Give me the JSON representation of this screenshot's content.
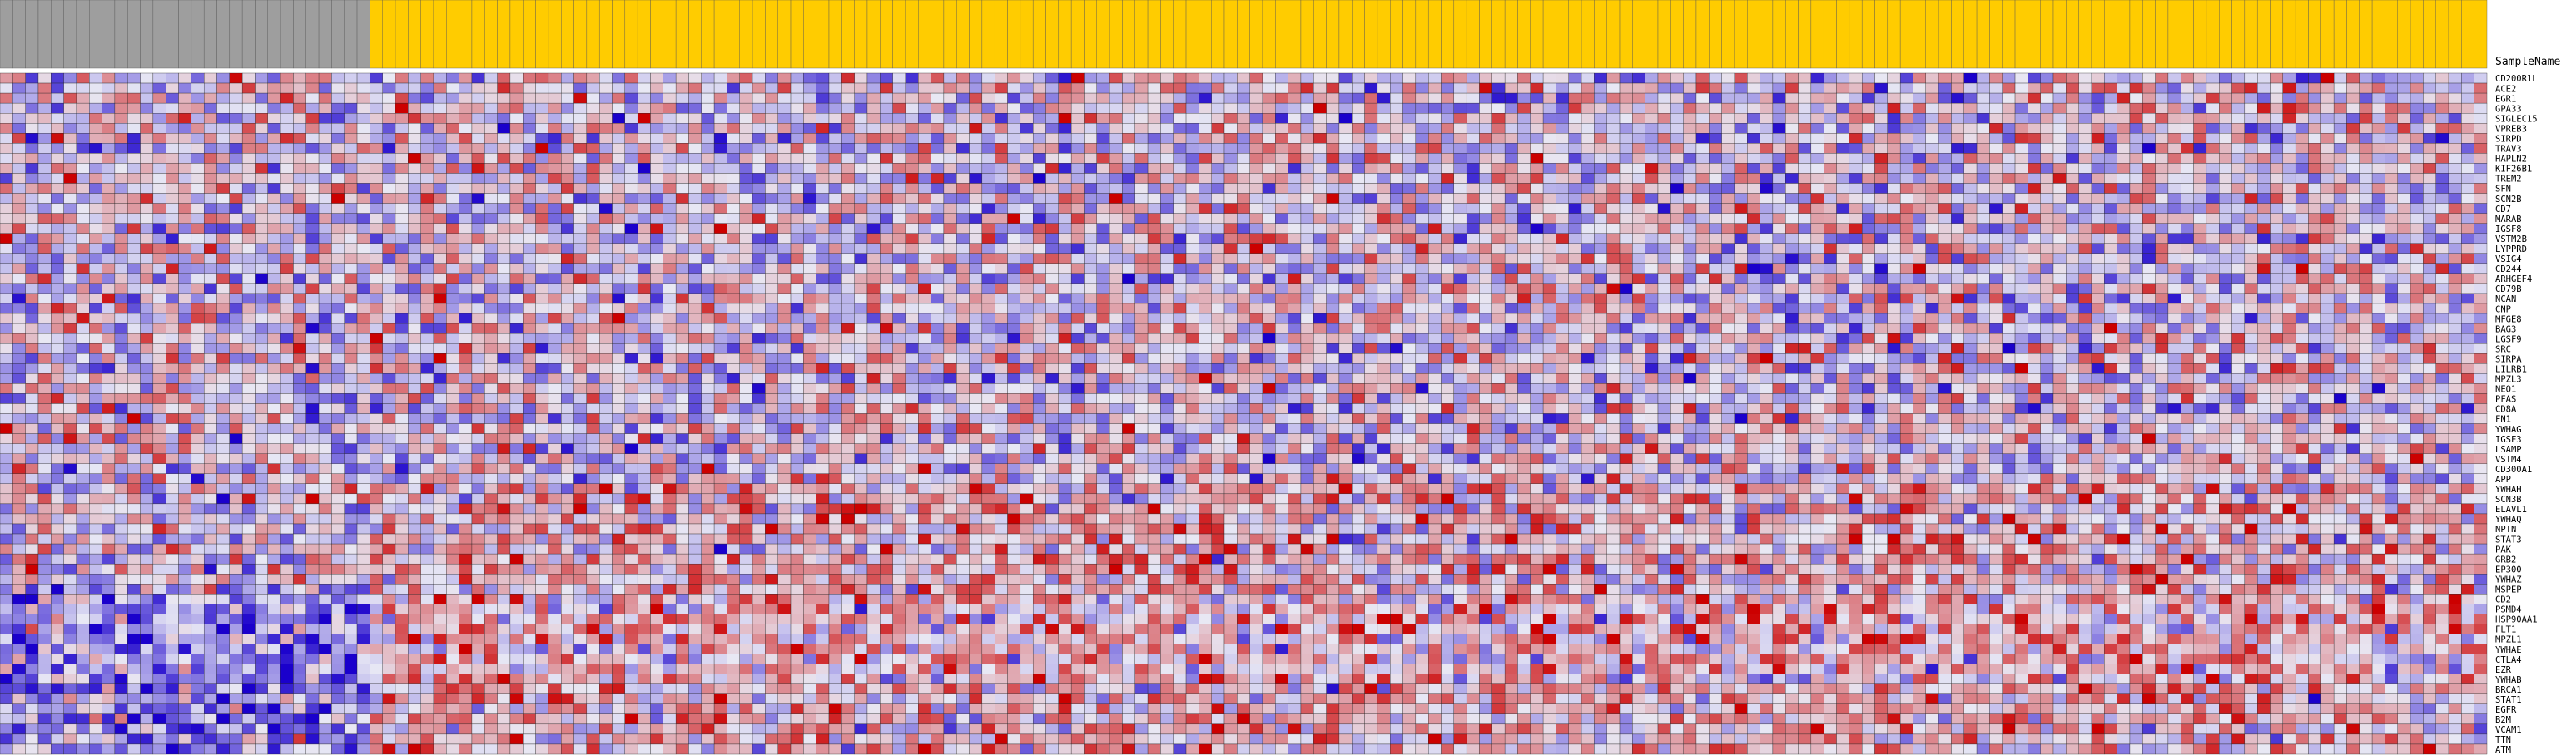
{
  "chart_data": {
    "type": "heatmap",
    "annotation_header_label": "SampleName",
    "annotation_colors": {
      "group_1": "#9e9e9e",
      "group_2": "#ffcc00"
    },
    "group_1_count": 29,
    "group_2_count": 166,
    "rows": [
      "CD200R1L",
      "ACE2",
      "EGR1",
      "GPA33",
      "SIGLEC15",
      "VPREB3",
      "SIRPD",
      "TRAV3",
      "HAPLN2",
      "KIF26B1",
      "TREM2",
      "SFN",
      "SCN2B",
      "CD7",
      "MARAB",
      "IGSF8",
      "VSTM2B",
      "LYPPRD",
      "VSIG4",
      "CD244",
      "ARHGEF4",
      "CD79B",
      "NCAN",
      "CNP",
      "MFGE8",
      "BAG3",
      "LGSF9",
      "SRC",
      "SIRPA",
      "LILRB1",
      "MPZL3",
      "NEO1",
      "PFAS",
      "CD8A",
      "FN1",
      "YWHAG",
      "IGSF3",
      "LSAMP",
      "VSTM4",
      "CD300A1",
      "APP",
      "YWHAH",
      "SCN3B",
      "ELAVL1",
      "YWHAQ",
      "NPTN",
      "STAT3",
      "PAK",
      "GRB2",
      "EP300",
      "YWHAZ",
      "MSPEP",
      "CD2",
      "PSMD4",
      "HSP90AA1",
      "FLT1",
      "MPZL1",
      "YWHAE",
      "CTLA4",
      "EZR",
      "YWHAB",
      "BRCA1",
      "STAT1",
      "EGFR",
      "B2M",
      "VCAM1",
      "TTN",
      "ATM"
    ],
    "values_note": "Column labels are rotated and too small to read; cell values shown as relative z-scores",
    "color_scale": {
      "low": "#1a00cc",
      "mid": "#e8e8f4",
      "high": "#cc0000",
      "min": -2.5,
      "max": 2.5
    },
    "grid": true,
    "legend": "none"
  }
}
